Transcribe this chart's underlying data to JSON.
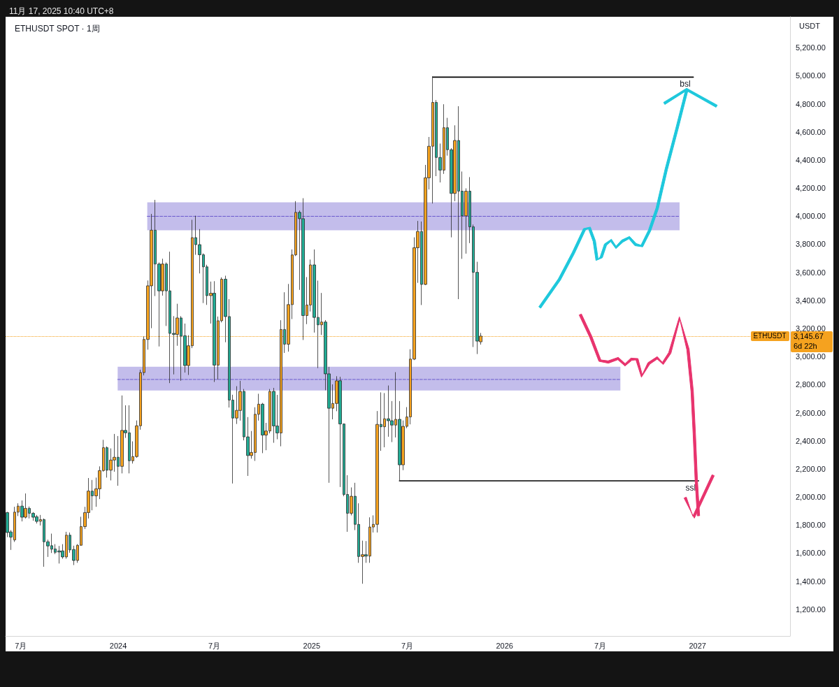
{
  "chart_data": {
    "type": "candlestick",
    "title": "ETHUSDT SPOT · 1周",
    "subtitle": "11月 17, 2025 10:40 UTC+8",
    "ylabel": "USDT",
    "colors": [
      "#22ab94",
      "#22ab94",
      "#f5a21f",
      "#f5a21f",
      "#22ab94",
      "#f5a21f",
      "#22ab94",
      "#22ab94",
      "#22ab94",
      "#f5a21f",
      "#22ab94",
      "#22ab94",
      "#22ab94",
      "#22ab94",
      "#22ab94",
      "#22ab94",
      "#f5a21f",
      "#22ab94",
      "#22ab94",
      "#f5a21f",
      "#f5a21f",
      "#f5a21f",
      "#f5a21f",
      "#22ab94",
      "#f5a21f",
      "#f5a21f",
      "#f5a21f",
      "#22ab94",
      "#f5a21f",
      "#f5a21f",
      "#22ab94",
      "#f5a21f",
      "#22ab94",
      "#22ab94",
      "#f5a21f",
      "#f5a21f",
      "#f5a21f",
      "#f5a21f",
      "#f5a21f",
      "#f5a21f",
      "#22ab94",
      "#22ab94",
      "#f5a21f",
      "#22ab94",
      "#22ab94",
      "#22ab94",
      "#f5a21f",
      "#22ab94",
      "#22ab94",
      "#f5a21f",
      "#f5a21f",
      "#22ab94",
      "#22ab94",
      "#22ab94",
      "#22ab94",
      "#f5a21f",
      "#22ab94",
      "#f5a21f",
      "#f5a21f",
      "#22ab94",
      "#22ab94",
      "#22ab94",
      "#f5a21f",
      "#f5a21f",
      "#22ab94",
      "#22ab94",
      "#f5a21f",
      "#f5a21f",
      "#f5a21f",
      "#22ab94",
      "#f5a21f",
      "#f5a21f",
      "#22ab94",
      "#22ab94",
      "#f5a21f",
      "#22ab94",
      "#f5a21f",
      "#f5a21f",
      "#f5a21f",
      "#22ab94",
      "#22ab94",
      "#f5a21f",
      "#f5a21f",
      "#22ab94",
      "#22ab94",
      "#f5a21f",
      "#22ab94",
      "#22ab94",
      "#f5a21f",
      "#f5a21f",
      "#22ab94",
      "#22ab94",
      "#22ab94",
      "#f5a21f",
      "#22ab94",
      "#22ab94",
      "#f5a21f",
      "#22ab94",
      "#f5a21f",
      "#f5a21f",
      "#f5a21f",
      "#22ab94",
      "#f5a21f",
      "#22ab94",
      "#22ab94",
      "#f5a21f",
      "#22ab94",
      "#f5a21f",
      "#f5a21f",
      "#f5a21f",
      "#f5a21f",
      "#f5a21f",
      "#22ab94",
      "#f5a21f",
      "#f5a21f",
      "#f5a21f",
      "#22ab94",
      "#22ab94",
      "#f5a21f",
      "#22ab94",
      "#22ab94",
      "#f5a21f",
      "#22ab94",
      "#22ab94",
      "#f5a21f",
      "#22ab94",
      "#22ab94",
      "#22ab94",
      "#f5a21f"
    ],
    "x": [
      "2023-06-05",
      "2023-06-12",
      "2023-06-19",
      "2023-06-26",
      "2023-07-03",
      "2023-07-10",
      "2023-07-17",
      "2023-07-24",
      "2023-07-31",
      "2023-08-07",
      "2023-08-14",
      "2023-08-21",
      "2023-08-28",
      "2023-09-04",
      "2023-09-11",
      "2023-09-18",
      "2023-09-25",
      "2023-10-02",
      "2023-10-09",
      "2023-10-16",
      "2023-10-23",
      "2023-10-30",
      "2023-11-06",
      "2023-11-13",
      "2023-11-20",
      "2023-11-27",
      "2023-12-04",
      "2023-12-11",
      "2023-12-18",
      "2023-12-25",
      "2024-01-01",
      "2024-01-08",
      "2024-01-15",
      "2024-01-22",
      "2024-01-29",
      "2024-02-05",
      "2024-02-12",
      "2024-02-19",
      "2024-02-26",
      "2024-03-04",
      "2024-03-11",
      "2024-03-18",
      "2024-03-25",
      "2024-04-01",
      "2024-04-08",
      "2024-04-15",
      "2024-04-22",
      "2024-04-29",
      "2024-05-06",
      "2024-05-13",
      "2024-05-20",
      "2024-05-27",
      "2024-06-03",
      "2024-06-10",
      "2024-06-17",
      "2024-06-24",
      "2024-07-01",
      "2024-07-08",
      "2024-07-15",
      "2024-07-22",
      "2024-07-29",
      "2024-08-05",
      "2024-08-12",
      "2024-08-19",
      "2024-08-26",
      "2024-09-02",
      "2024-09-09",
      "2024-09-16",
      "2024-09-23",
      "2024-09-30",
      "2024-10-07",
      "2024-10-14",
      "2024-10-21",
      "2024-10-28",
      "2024-11-04",
      "2024-11-11",
      "2024-11-18",
      "2024-11-25",
      "2024-12-02",
      "2024-12-09",
      "2024-12-16",
      "2024-12-23",
      "2024-12-30",
      "2025-01-06",
      "2025-01-13",
      "2025-01-20",
      "2025-01-27",
      "2025-02-03",
      "2025-02-10",
      "2025-02-17",
      "2025-02-24",
      "2025-03-03",
      "2025-03-10",
      "2025-03-17",
      "2025-03-24",
      "2025-03-31",
      "2025-04-07",
      "2025-04-14",
      "2025-04-21",
      "2025-04-28",
      "2025-05-05",
      "2025-05-12",
      "2025-05-19",
      "2025-05-26",
      "2025-06-02",
      "2025-06-09",
      "2025-06-16",
      "2025-06-23",
      "2025-06-30",
      "2025-07-07",
      "2025-07-14",
      "2025-07-21",
      "2025-07-28",
      "2025-08-04",
      "2025-08-11",
      "2025-08-18",
      "2025-08-25",
      "2025-09-01",
      "2025-09-08",
      "2025-09-15",
      "2025-09-22",
      "2025-09-29",
      "2025-10-06",
      "2025-10-13",
      "2025-10-20",
      "2025-10-27",
      "2025-11-03",
      "2025-11-10",
      "2025-11-17"
    ],
    "ohlc": [
      [
        1889,
        1894,
        1714,
        1747
      ],
      [
        1751,
        1764,
        1623,
        1714
      ],
      [
        1694,
        1930,
        1680,
        1892
      ],
      [
        1892,
        1955,
        1864,
        1935
      ],
      [
        1935,
        1975,
        1826,
        1856
      ],
      [
        1856,
        2025,
        1847,
        1919
      ],
      [
        1919,
        1932,
        1847,
        1884
      ],
      [
        1884,
        1892,
        1831,
        1856
      ],
      [
        1859,
        1872,
        1811,
        1826
      ],
      [
        1827,
        1872,
        1797,
        1839
      ],
      [
        1839,
        1847,
        1503,
        1681
      ],
      [
        1681,
        1696,
        1573,
        1651
      ],
      [
        1653,
        1739,
        1601,
        1628
      ],
      [
        1630,
        1664,
        1593,
        1606
      ],
      [
        1616,
        1651,
        1526,
        1608
      ],
      [
        1616,
        1664,
        1560,
        1573
      ],
      [
        1573,
        1752,
        1560,
        1728
      ],
      [
        1728,
        1747,
        1603,
        1623
      ],
      [
        1626,
        1653,
        1515,
        1548
      ],
      [
        1548,
        1664,
        1531,
        1656
      ],
      [
        1656,
        1859,
        1653,
        1789
      ],
      [
        1789,
        1930,
        1772,
        1889
      ],
      [
        1889,
        2135,
        1847,
        2042
      ],
      [
        2042,
        2121,
        1905,
        2008
      ],
      [
        2008,
        2138,
        1930,
        2058
      ],
      [
        2058,
        2218,
        1985,
        2188
      ],
      [
        2188,
        2407,
        2180,
        2351
      ],
      [
        2351,
        2360,
        2138,
        2191
      ],
      [
        2191,
        2346,
        2118,
        2263
      ],
      [
        2263,
        2449,
        2180,
        2283
      ],
      [
        2283,
        2434,
        2080,
        2218
      ],
      [
        2218,
        2723,
        2168,
        2474
      ],
      [
        2474,
        2653,
        2421,
        2457
      ],
      [
        2457,
        2653,
        2168,
        2258
      ],
      [
        2258,
        2396,
        2238,
        2288
      ],
      [
        2288,
        2545,
        2279,
        2507
      ],
      [
        2507,
        2906,
        2479,
        2886
      ],
      [
        2886,
        3143,
        2866,
        3122
      ],
      [
        3122,
        3542,
        3049,
        3504
      ],
      [
        3504,
        4016,
        3202,
        3900
      ],
      [
        3900,
        4116,
        3431,
        3659
      ],
      [
        3659,
        3670,
        3072,
        3468
      ],
      [
        3468,
        3697,
        3434,
        3659
      ],
      [
        3659,
        3670,
        3218,
        3468
      ],
      [
        3468,
        3747,
        2811,
        3165
      ],
      [
        3165,
        3288,
        2873,
        3158
      ],
      [
        3158,
        3376,
        3077,
        3275
      ],
      [
        3275,
        3288,
        2828,
        3145
      ],
      [
        3148,
        3235,
        2886,
        2936
      ],
      [
        2936,
        3152,
        2869,
        3077
      ],
      [
        3077,
        3974,
        3060,
        3847
      ],
      [
        3847,
        4003,
        3725,
        3797
      ],
      [
        3797,
        3908,
        3592,
        3725
      ],
      [
        3725,
        3735,
        3381,
        3639
      ],
      [
        3639,
        3654,
        3368,
        3434
      ],
      [
        3434,
        3534,
        3235,
        3451
      ],
      [
        3451,
        3537,
        2819,
        2939
      ],
      [
        2939,
        3285,
        2836,
        3255
      ],
      [
        3255,
        3564,
        3243,
        3551
      ],
      [
        3551,
        3576,
        3102,
        3285
      ],
      [
        3285,
        3409,
        2637,
        2690
      ],
      [
        2690,
        2728,
        2096,
        2562
      ],
      [
        2562,
        2789,
        2520,
        2617
      ],
      [
        2616,
        2827,
        2544,
        2752
      ],
      [
        2752,
        2769,
        2403,
        2428
      ],
      [
        2428,
        2569,
        2150,
        2295
      ],
      [
        2295,
        2470,
        2273,
        2317
      ],
      [
        2317,
        2639,
        2257,
        2589
      ],
      [
        2589,
        2735,
        2544,
        2661
      ],
      [
        2661,
        2670,
        2312,
        2441
      ],
      [
        2441,
        2528,
        2333,
        2470
      ],
      [
        2470,
        2769,
        2453,
        2752
      ],
      [
        2752,
        2777,
        2386,
        2506
      ],
      [
        2506,
        2727,
        2411,
        2456
      ],
      [
        2456,
        3259,
        2361,
        3193
      ],
      [
        3193,
        3458,
        3026,
        3088
      ],
      [
        3088,
        3517,
        3035,
        3370
      ],
      [
        3370,
        3763,
        3267,
        3724
      ],
      [
        3724,
        4107,
        3716,
        4027
      ],
      [
        4027,
        4040,
        3475,
        3982
      ],
      [
        3982,
        4128,
        3118,
        3292
      ],
      [
        3292,
        3566,
        3231,
        3367
      ],
      [
        3367,
        3691,
        3321,
        3653
      ],
      [
        3653,
        3763,
        3171,
        3279
      ],
      [
        3279,
        3541,
        2918,
        3226
      ],
      [
        3226,
        3453,
        3154,
        3246
      ],
      [
        3246,
        3260,
        2760,
        2877
      ],
      [
        2877,
        2927,
        2101,
        2632
      ],
      [
        2632,
        2802,
        2553,
        2666
      ],
      [
        2666,
        2860,
        2611,
        2827
      ],
      [
        2828,
        2856,
        2071,
        2520
      ],
      [
        2520,
        2523,
        2005,
        2018
      ],
      [
        2018,
        2155,
        1752,
        1884
      ],
      [
        1884,
        2068,
        1869,
        2005
      ],
      [
        2005,
        2101,
        1764,
        1805
      ],
      [
        1805,
        1955,
        1531,
        1576
      ],
      [
        1576,
        1689,
        1382,
        1589
      ],
      [
        1589,
        1686,
        1531,
        1579
      ],
      [
        1579,
        1855,
        1531,
        1786
      ],
      [
        1786,
        1869,
        1747,
        1805
      ],
      [
        1805,
        2612,
        1747,
        2517
      ],
      [
        2517,
        2745,
        2329,
        2500
      ],
      [
        2500,
        2740,
        2354,
        2557
      ],
      [
        2557,
        2794,
        2429,
        2543
      ],
      [
        2543,
        2683,
        2391,
        2512
      ],
      [
        2512,
        2889,
        2424,
        2553
      ],
      [
        2553,
        2683,
        2118,
        2229
      ],
      [
        2229,
        2545,
        2191,
        2503
      ],
      [
        2503,
        2640,
        2490,
        2570
      ],
      [
        2570,
        3052,
        2517,
        2982
      ],
      [
        2982,
        3849,
        2975,
        3775
      ],
      [
        3775,
        3966,
        3525,
        3891
      ],
      [
        3891,
        3962,
        3367,
        3514
      ],
      [
        3514,
        4365,
        3509,
        4273
      ],
      [
        4273,
        4564,
        4190,
        4498
      ],
      [
        4498,
        4996,
        4090,
        4810
      ],
      [
        4810,
        4827,
        4285,
        4418
      ],
      [
        4418,
        4517,
        4240,
        4328
      ],
      [
        4328,
        4797,
        4301,
        4630
      ],
      [
        4630,
        4700,
        4431,
        4473
      ],
      [
        4473,
        4484,
        3849,
        4162
      ],
      [
        4162,
        4647,
        4107,
        4539
      ],
      [
        4539,
        4783,
        3409,
        4178
      ],
      [
        4178,
        4318,
        3696,
        4002
      ],
      [
        4002,
        4198,
        3733,
        4178
      ],
      [
        4178,
        4278,
        3808,
        3924
      ],
      [
        3924,
        3940,
        3068,
        3600
      ],
      [
        3600,
        3675,
        3018,
        3110
      ],
      [
        3105,
        3168,
        3085,
        3145.67
      ]
    ],
    "series": [
      {
        "type": "line",
        "color": "#6a5acd",
        "line_style": "dashed",
        "x": [
          "2024-02-25",
          "2026-11-28"
        ],
        "values": [
          3999,
          3999
        ],
        "lower": [
          3899,
          3899
        ],
        "upper": [
          4099,
          4099
        ]
      },
      {
        "type": "line",
        "color": "#6a5acd",
        "line_style": "dashed",
        "x": [
          "2023-12-31",
          "2026-08-08"
        ],
        "values": [
          2837,
          2837
        ],
        "lower": [
          2758,
          2758
        ],
        "upper": [
          2927,
          2927
        ]
      },
      {
        "type": "line",
        "color": "#000000",
        "x": [
          "2025-08-18",
          "2026-12-24"
        ],
        "values": [
          4990,
          4990
        ]
      },
      {
        "type": "line",
        "color": "#000000",
        "x": [
          "2025-06-16",
          "2027-01-03"
        ],
        "values": [
          2115,
          2115
        ]
      }
    ],
    "ref_lines": [
      {
        "axis": "y",
        "value": 3145.67,
        "label": "ETHUSDT",
        "color": "#f5a21f",
        "line_style": "dotted"
      }
    ],
    "annotations": [
      "3,145.67",
      "6d 22h",
      {
        "text": "bsl",
        "x": "2026-12-24",
        "y": 4990
      },
      {
        "text": "ssl",
        "x": "2027-01-03",
        "y": 2115
      }
    ],
    "xlim": [
      "2023-06-02",
      "2027-06-25"
    ],
    "xticks": [
      {
        "value": "2023-07-01",
        "label": "7月"
      },
      {
        "value": "2024-01-01",
        "label": "2024"
      },
      {
        "value": "2024-07-01",
        "label": "7月"
      },
      {
        "value": "2025-01-01",
        "label": "2025"
      },
      {
        "value": "2025-07-01",
        "label": "7月"
      },
      {
        "value": "2026-01-01",
        "label": "2026"
      },
      {
        "value": "2026-07-01",
        "label": "7月"
      },
      {
        "value": "2027-01-01",
        "label": "2027"
      }
    ],
    "ylim": [
      1010,
      5420
    ],
    "yticks": [
      {
        "value": 1200,
        "label": "1,200.00"
      },
      {
        "value": 1400,
        "label": "1,400.00"
      },
      {
        "value": 1600,
        "label": "1,600.00"
      },
      {
        "value": 1800,
        "label": "1,800.00"
      },
      {
        "value": 2000,
        "label": "2,000.00"
      },
      {
        "value": 2200,
        "label": "2,200.00"
      },
      {
        "value": 2400,
        "label": "2,400.00"
      },
      {
        "value": 2600,
        "label": "2,600.00"
      },
      {
        "value": 2800,
        "label": "2,800.00"
      },
      {
        "value": 3000,
        "label": "3,000.00"
      },
      {
        "value": 3200,
        "label": "3,200.00"
      },
      {
        "value": 3400,
        "label": "3,400.00"
      },
      {
        "value": 3600,
        "label": "3,600.00"
      },
      {
        "value": 3800,
        "label": "3,800.00"
      },
      {
        "value": 4000,
        "label": "4,000.00"
      },
      {
        "value": 4200,
        "label": "4,200.00"
      },
      {
        "value": 4400,
        "label": "4,400.00"
      },
      {
        "value": 4600,
        "label": "4,600.00"
      },
      {
        "value": 4800,
        "label": "4,800.00"
      },
      {
        "value": 5000,
        "label": "5,000.00"
      },
      {
        "value": 5200,
        "label": "5,200.00"
      }
    ]
  }
}
